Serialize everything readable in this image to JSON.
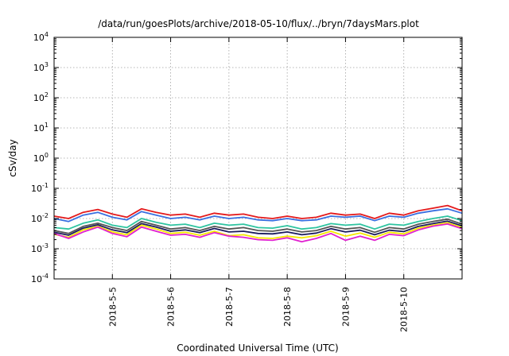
{
  "chart_data": {
    "type": "line",
    "title": "/data/run/goesPlots/archive/2018-05-10/flux/../bryn/7daysMars.plot",
    "xlabel": "Coordinated Universal Time (UTC)",
    "ylabel": "cSv/day",
    "yscale": "log",
    "ylim": [
      0.0001,
      10000
    ],
    "y_ticks": [
      {
        "base": "10",
        "exp": "-4",
        "value": 0.0001
      },
      {
        "base": "10",
        "exp": "-3",
        "value": 0.001
      },
      {
        "base": "10",
        "exp": "-2",
        "value": 0.01
      },
      {
        "base": "10",
        "exp": "-1",
        "value": 0.1
      },
      {
        "base": "10",
        "exp": "0",
        "value": 1
      },
      {
        "base": "10",
        "exp": "1",
        "value": 10
      },
      {
        "base": "10",
        "exp": "2",
        "value": 100
      },
      {
        "base": "10",
        "exp": "3",
        "value": 1000
      },
      {
        "base": "10",
        "exp": "4",
        "value": 10000
      }
    ],
    "xlim": [
      "2018-05-04 00:00",
      "2018-05-11 00:00"
    ],
    "x_ticks": [
      {
        "label": "2018-5-5",
        "time": "2018-05-05 00:00"
      },
      {
        "label": "2018-5-6",
        "time": "2018-05-06 00:00"
      },
      {
        "label": "2018-5-7",
        "time": "2018-05-07 00:00"
      },
      {
        "label": "2018-5-8",
        "time": "2018-05-08 00:00"
      },
      {
        "label": "2018-5-9",
        "time": "2018-05-09 00:00"
      },
      {
        "label": "2018-5-10",
        "time": "2018-05-10 00:00"
      }
    ],
    "grid": true,
    "x": [
      "2018-05-04 00:00",
      "2018-05-04 06:00",
      "2018-05-04 12:00",
      "2018-05-04 18:00",
      "2018-05-05 00:00",
      "2018-05-05 06:00",
      "2018-05-05 12:00",
      "2018-05-05 18:00",
      "2018-05-06 00:00",
      "2018-05-06 06:00",
      "2018-05-06 12:00",
      "2018-05-06 18:00",
      "2018-05-07 00:00",
      "2018-05-07 06:00",
      "2018-05-07 12:00",
      "2018-05-07 18:00",
      "2018-05-08 00:00",
      "2018-05-08 06:00",
      "2018-05-08 12:00",
      "2018-05-08 18:00",
      "2018-05-09 00:00",
      "2018-05-09 06:00",
      "2018-05-09 12:00",
      "2018-05-09 18:00",
      "2018-05-10 00:00",
      "2018-05-10 06:00",
      "2018-05-10 12:00",
      "2018-05-10 18:00",
      "2018-05-11 00:00"
    ],
    "series": [
      {
        "color": "#e41a1c",
        "values": [
          0.012,
          0.01,
          0.016,
          0.02,
          0.014,
          0.011,
          0.021,
          0.016,
          0.013,
          0.014,
          0.011,
          0.015,
          0.013,
          0.014,
          0.011,
          0.01,
          0.012,
          0.01,
          0.011,
          0.015,
          0.013,
          0.014,
          0.01,
          0.015,
          0.013,
          0.018,
          0.022,
          0.027,
          0.018
        ]
      },
      {
        "color": "#3a6fe0",
        "values": [
          0.01,
          0.008,
          0.013,
          0.016,
          0.011,
          0.009,
          0.017,
          0.013,
          0.01,
          0.011,
          0.009,
          0.012,
          0.01,
          0.011,
          0.009,
          0.0085,
          0.01,
          0.0085,
          0.009,
          0.012,
          0.011,
          0.012,
          0.0085,
          0.012,
          0.011,
          0.015,
          0.018,
          0.021,
          0.015
        ]
      },
      {
        "color": "#2ec4a0",
        "values": [
          0.005,
          0.0045,
          0.007,
          0.009,
          0.006,
          0.005,
          0.01,
          0.0075,
          0.006,
          0.0065,
          0.005,
          0.007,
          0.006,
          0.0065,
          0.005,
          0.0048,
          0.0058,
          0.0045,
          0.005,
          0.0068,
          0.006,
          0.0065,
          0.0045,
          0.0065,
          0.006,
          0.008,
          0.01,
          0.012,
          0.0085
        ]
      },
      {
        "color": "#555555",
        "values": [
          0.004,
          0.0032,
          0.0055,
          0.007,
          0.005,
          0.004,
          0.008,
          0.006,
          0.0045,
          0.005,
          0.004,
          0.0055,
          0.0045,
          0.005,
          0.004,
          0.0038,
          0.0045,
          0.0036,
          0.004,
          0.0055,
          0.0045,
          0.005,
          0.0035,
          0.005,
          0.0045,
          0.0065,
          0.008,
          0.0095,
          0.0065
        ]
      },
      {
        "color": "#1c1c5c",
        "values": [
          0.0035,
          0.0028,
          0.0048,
          0.0062,
          0.0042,
          0.0034,
          0.0068,
          0.0052,
          0.0038,
          0.0042,
          0.0034,
          0.0047,
          0.0036,
          0.0038,
          0.0032,
          0.0031,
          0.0036,
          0.0029,
          0.0033,
          0.0046,
          0.0036,
          0.0041,
          0.0029,
          0.0041,
          0.0037,
          0.0055,
          0.0068,
          0.0082,
          0.0057
        ]
      },
      {
        "color": "#f5e800",
        "values": [
          0.003,
          0.0024,
          0.0042,
          0.0055,
          0.0036,
          0.0029,
          0.006,
          0.0045,
          0.0032,
          0.0035,
          0.0028,
          0.0038,
          0.0027,
          0.0029,
          0.0023,
          0.0022,
          0.0026,
          0.0023,
          0.0027,
          0.0038,
          0.0026,
          0.0033,
          0.0024,
          0.0035,
          0.0031,
          0.0048,
          0.006,
          0.0072,
          0.005
        ]
      },
      {
        "color": "#e020d0",
        "values": [
          0.0032,
          0.0022,
          0.0036,
          0.0052,
          0.0032,
          0.0025,
          0.0052,
          0.0038,
          0.0028,
          0.003,
          0.0024,
          0.0034,
          0.0026,
          0.0024,
          0.002,
          0.0019,
          0.0023,
          0.0017,
          0.0022,
          0.0032,
          0.0019,
          0.0026,
          0.0019,
          0.003,
          0.0027,
          0.0042,
          0.0056,
          0.0066,
          0.0046
        ]
      }
    ]
  }
}
